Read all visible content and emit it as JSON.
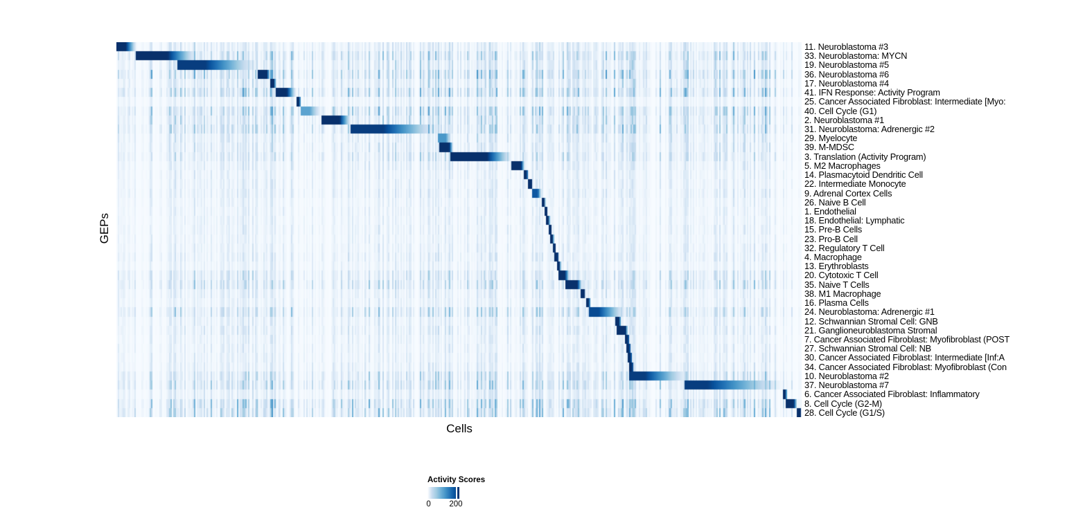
{
  "chart_data": {
    "type": "heatmap",
    "xlabel": "Cells",
    "ylabel": "GEPs",
    "grid": false,
    "colormap_blues": [
      "#F7FBFF",
      "#DEEBF7",
      "#C6DBEF",
      "#9ECAE1",
      "#6BAED6",
      "#4292C6",
      "#2171B5",
      "#08519C",
      "#08306B"
    ],
    "legend": {
      "title": "Activity Scores",
      "min_label": "0",
      "tick_label": "200",
      "min_value": 0,
      "tick_value": 200,
      "tick_frac": 0.89,
      "position": "bottom-center"
    },
    "rows": [
      {
        "label": "11. Neuroblastoma #3",
        "block": {
          "start": 0.0,
          "dark_end": 0.014,
          "fade_end": 0.03
        },
        "peak": 1.0,
        "noise_amp": 0.5
      },
      {
        "label": "33. Neuroblastoma: MYCN",
        "block": {
          "start": 0.028,
          "dark_end": 0.075,
          "fade_end": 0.118
        },
        "peak": 1.0,
        "noise_amp": 0.8
      },
      {
        "label": "19. Neuroblastoma #5",
        "block": {
          "start": 0.089,
          "dark_end": 0.13,
          "fade_end": 0.207
        },
        "peak": 0.95,
        "noise_amp": 0.6
      },
      {
        "label": "36. Neuroblastoma #6",
        "block": {
          "start": 0.206,
          "dark_end": 0.22,
          "fade_end": 0.225
        },
        "peak": 1.0,
        "noise_amp": 0.9
      },
      {
        "label": "17. Neuroblastoma #4",
        "block": {
          "start": 0.224,
          "dark_end": 0.23,
          "fade_end": 0.234
        },
        "peak": 1.0,
        "noise_amp": 0.6
      },
      {
        "label": "41. IFN Response: Activity Program",
        "block": {
          "start": 0.233,
          "dark_end": 0.249,
          "fade_end": 0.263
        },
        "peak": 1.0,
        "noise_amp": 0.9
      },
      {
        "label": "25. Cancer Associated Fibroblast: Intermediate [Myo:",
        "block": {
          "start": 0.262,
          "dark_end": 0.267,
          "fade_end": 0.27
        },
        "peak": 1.0,
        "noise_amp": 0.35
      },
      {
        "label": "40. Cell Cycle (G1)",
        "block": {
          "start": 0.268,
          "dark_end": 0.282,
          "fade_end": 0.3
        },
        "peak": 0.55,
        "noise_amp": 0.85
      },
      {
        "label": "2. Neuroblastoma #1",
        "block": {
          "start": 0.299,
          "dark_end": 0.326,
          "fade_end": 0.343
        },
        "peak": 1.0,
        "noise_amp": 0.7
      },
      {
        "label": "31. Neuroblastoma: Adrenergic #2",
        "block": {
          "start": 0.341,
          "dark_end": 0.39,
          "fade_end": 0.471
        },
        "peak": 0.95,
        "noise_amp": 0.8
      },
      {
        "label": "29. Myelocyte",
        "block": {
          "start": 0.47,
          "dark_end": 0.481,
          "fade_end": 0.489
        },
        "peak": 0.6,
        "noise_amp": 0.5
      },
      {
        "label": "39. M-MDSC",
        "block": {
          "start": 0.471,
          "dark_end": 0.486,
          "fade_end": 0.492
        },
        "peak": 1.0,
        "noise_amp": 0.5
      },
      {
        "label": "3. Translation (Activity Program)",
        "block": {
          "start": 0.488,
          "dark_end": 0.541,
          "fade_end": 0.578
        },
        "peak": 1.0,
        "noise_amp": 0.6
      },
      {
        "label": "5. M2 Macrophages",
        "block": {
          "start": 0.577,
          "dark_end": 0.591,
          "fade_end": 0.596
        },
        "peak": 1.0,
        "noise_amp": 0.4
      },
      {
        "label": "14. Plasmacytoid Dendritic Cell",
        "block": {
          "start": 0.595,
          "dark_end": 0.599,
          "fade_end": 0.602
        },
        "peak": 1.0,
        "noise_amp": 0.35
      },
      {
        "label": "22. Intermediate Monocyte",
        "block": {
          "start": 0.6,
          "dark_end": 0.606,
          "fade_end": 0.608
        },
        "peak": 1.0,
        "noise_amp": 0.35
      },
      {
        "label": "9. Adrenal Cortex Cells",
        "block": {
          "start": 0.607,
          "dark_end": 0.615,
          "fade_end": 0.621
        },
        "peak": 0.85,
        "noise_amp": 0.4
      },
      {
        "label": "26. Naive B Cell",
        "block": {
          "start": 0.62,
          "dark_end": 0.624,
          "fade_end": 0.627
        },
        "peak": 1.0,
        "noise_amp": 0.3
      },
      {
        "label": "1. Endothelial",
        "block": {
          "start": 0.624,
          "dark_end": 0.628,
          "fade_end": 0.63
        },
        "peak": 1.0,
        "noise_amp": 0.3
      },
      {
        "label": "18. Endothelial: Lymphatic",
        "block": {
          "start": 0.627,
          "dark_end": 0.631,
          "fade_end": 0.633
        },
        "peak": 1.0,
        "noise_amp": 0.3
      },
      {
        "label": "15. Pre-B Cells",
        "block": {
          "start": 0.63,
          "dark_end": 0.634,
          "fade_end": 0.636
        },
        "peak": 1.0,
        "noise_amp": 0.35
      },
      {
        "label": "23. Pro-B Cell",
        "block": {
          "start": 0.633,
          "dark_end": 0.637,
          "fade_end": 0.639
        },
        "peak": 1.0,
        "noise_amp": 0.3
      },
      {
        "label": "32. Regulatory T Cell",
        "block": {
          "start": 0.636,
          "dark_end": 0.64,
          "fade_end": 0.642
        },
        "peak": 1.0,
        "noise_amp": 0.35
      },
      {
        "label": "4. Macrophage",
        "block": {
          "start": 0.64,
          "dark_end": 0.644,
          "fade_end": 0.646
        },
        "peak": 1.0,
        "noise_amp": 0.4
      },
      {
        "label": "13. Erythroblasts",
        "block": {
          "start": 0.643,
          "dark_end": 0.647,
          "fade_end": 0.649
        },
        "peak": 1.0,
        "noise_amp": 0.3
      },
      {
        "label": "20. Cytotoxic T Cell",
        "block": {
          "start": 0.646,
          "dark_end": 0.655,
          "fade_end": 0.662
        },
        "peak": 1.0,
        "noise_amp": 0.6
      },
      {
        "label": "35. Naive T Cells",
        "block": {
          "start": 0.655,
          "dark_end": 0.673,
          "fade_end": 0.68
        },
        "peak": 1.0,
        "noise_amp": 0.7
      },
      {
        "label": "38. M1 Macrophage",
        "block": {
          "start": 0.678,
          "dark_end": 0.683,
          "fade_end": 0.685
        },
        "peak": 1.0,
        "noise_amp": 0.4
      },
      {
        "label": "16. Plasma Cells",
        "block": {
          "start": 0.686,
          "dark_end": 0.69,
          "fade_end": 0.692
        },
        "peak": 1.0,
        "noise_amp": 0.35
      },
      {
        "label": "24. Neuroblastoma: Adrenergic #1",
        "block": {
          "start": 0.69,
          "dark_end": 0.704,
          "fade_end": 0.744
        },
        "peak": 0.9,
        "noise_amp": 0.7
      },
      {
        "label": "12. Schwannian Stromal Cell: GNB",
        "block": {
          "start": 0.728,
          "dark_end": 0.734,
          "fade_end": 0.737
        },
        "peak": 1.0,
        "noise_amp": 0.4
      },
      {
        "label": "21. Ganglioneuroblastoma Stromal",
        "block": {
          "start": 0.731,
          "dark_end": 0.743,
          "fade_end": 0.747
        },
        "peak": 1.0,
        "noise_amp": 0.45
      },
      {
        "label": "7. Cancer Associated Fibroblast: Myofibroblast (POST",
        "block": {
          "start": 0.742,
          "dark_end": 0.747,
          "fade_end": 0.749
        },
        "peak": 1.0,
        "noise_amp": 0.35
      },
      {
        "label": "27. Schwannian Stromal Cell: NB",
        "block": {
          "start": 0.744,
          "dark_end": 0.749,
          "fade_end": 0.751
        },
        "peak": 1.0,
        "noise_amp": 0.35
      },
      {
        "label": "30. Cancer Associated Fibroblast: Intermediate [Inf:A",
        "block": {
          "start": 0.746,
          "dark_end": 0.751,
          "fade_end": 0.753
        },
        "peak": 1.0,
        "noise_amp": 0.35
      },
      {
        "label": "34. Cancer Associated Fibroblast: Myofibroblast (Con",
        "block": {
          "start": 0.748,
          "dark_end": 0.753,
          "fade_end": 0.756
        },
        "peak": 1.0,
        "noise_amp": 0.4
      },
      {
        "label": "10. Neuroblastoma #2",
        "block": {
          "start": 0.749,
          "dark_end": 0.772,
          "fade_end": 0.835
        },
        "peak": 0.95,
        "noise_amp": 0.7
      },
      {
        "label": "37. Neuroblastoma #7",
        "block": {
          "start": 0.83,
          "dark_end": 0.863,
          "fade_end": 0.974
        },
        "peak": 0.95,
        "noise_amp": 0.8
      },
      {
        "label": "6. Cancer Associated Fibroblast: Inflammatory",
        "block": {
          "start": 0.972,
          "dark_end": 0.977,
          "fade_end": 0.979
        },
        "peak": 1.0,
        "noise_amp": 0.45
      },
      {
        "label": "8. Cell Cycle (G2-M)",
        "block": {
          "start": 0.976,
          "dark_end": 0.989,
          "fade_end": 0.994
        },
        "peak": 1.0,
        "noise_amp": 0.9
      },
      {
        "label": "28. Cell Cycle (G1/S)",
        "block": {
          "start": 0.992,
          "dark_end": 0.999,
          "fade_end": 1.0
        },
        "peak": 1.0,
        "noise_amp": 0.9
      }
    ]
  }
}
